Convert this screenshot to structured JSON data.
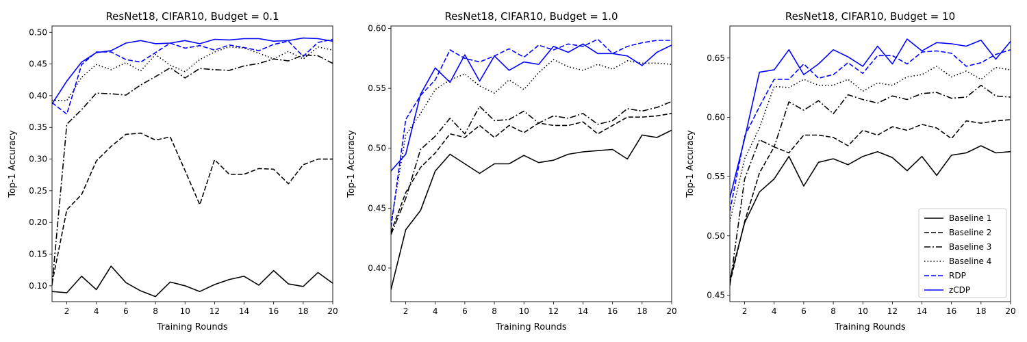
{
  "chart_data": [
    {
      "type": "line",
      "title": "ResNet18, CIFAR10, Budget = 0.1",
      "xlabel": "Training Rounds",
      "ylabel": "Top-1 Accuracy",
      "xlim": [
        1,
        20
      ],
      "ylim": [
        0.075,
        0.51
      ],
      "xticks": [
        2,
        4,
        6,
        8,
        10,
        12,
        14,
        16,
        18,
        20
      ],
      "yticks": [
        0.1,
        0.15,
        0.2,
        0.25,
        0.3,
        0.35,
        0.4,
        0.45,
        0.5
      ],
      "x": [
        1,
        2,
        3,
        4,
        5,
        6,
        7,
        8,
        9,
        10,
        11,
        12,
        13,
        14,
        15,
        16,
        17,
        18,
        19,
        20
      ],
      "series": [
        {
          "name": "Baseline 1",
          "color": "#000000",
          "style": "solid",
          "values": [
            0.091,
            0.089,
            0.115,
            0.094,
            0.131,
            0.105,
            0.092,
            0.083,
            0.106,
            0.1,
            0.091,
            0.102,
            0.11,
            0.115,
            0.101,
            0.124,
            0.103,
            0.099,
            0.121,
            0.104
          ]
        },
        {
          "name": "Baseline 2",
          "color": "#000000",
          "style": "dashed",
          "values": [
            0.104,
            0.22,
            0.244,
            0.297,
            0.32,
            0.339,
            0.341,
            0.33,
            0.335,
            0.282,
            0.228,
            0.299,
            0.276,
            0.276,
            0.285,
            0.284,
            0.261,
            0.291,
            0.3,
            0.3
          ]
        },
        {
          "name": "Baseline 3",
          "color": "#000000",
          "style": "dashdot",
          "values": [
            0.101,
            0.355,
            0.378,
            0.404,
            0.403,
            0.401,
            0.417,
            0.43,
            0.444,
            0.428,
            0.443,
            0.441,
            0.44,
            0.447,
            0.451,
            0.458,
            0.455,
            0.464,
            0.463,
            0.451
          ]
        },
        {
          "name": "Baseline 4",
          "color": "#000000",
          "style": "dotted",
          "values": [
            0.393,
            0.392,
            0.429,
            0.449,
            0.441,
            0.452,
            0.439,
            0.465,
            0.448,
            0.438,
            0.457,
            0.469,
            0.477,
            0.475,
            0.467,
            0.458,
            0.47,
            0.458,
            0.477,
            0.472
          ]
        },
        {
          "name": "RDP",
          "color": "#0000ff",
          "style": "dashed",
          "values": [
            0.389,
            0.371,
            0.449,
            0.469,
            0.469,
            0.457,
            0.453,
            0.468,
            0.483,
            0.475,
            0.479,
            0.472,
            0.48,
            0.476,
            0.471,
            0.481,
            0.486,
            0.462,
            0.484,
            0.489
          ]
        },
        {
          "name": "zCDP",
          "color": "#0000ff",
          "style": "solid",
          "values": [
            0.387,
            0.423,
            0.453,
            0.468,
            0.471,
            0.483,
            0.487,
            0.482,
            0.483,
            0.487,
            0.482,
            0.489,
            0.488,
            0.49,
            0.49,
            0.486,
            0.487,
            0.491,
            0.49,
            0.486
          ]
        }
      ]
    },
    {
      "type": "line",
      "title": "ResNet18, CIFAR10, Budget = 1.0",
      "xlabel": "Training Rounds",
      "ylabel": "Top-1 Accuracy",
      "xlim": [
        1,
        20
      ],
      "ylim": [
        0.372,
        0.602
      ],
      "xticks": [
        2,
        4,
        6,
        8,
        10,
        12,
        14,
        16,
        18,
        20
      ],
      "yticks": [
        0.4,
        0.45,
        0.5,
        0.55,
        0.6
      ],
      "x": [
        1,
        2,
        3,
        4,
        5,
        6,
        7,
        8,
        9,
        10,
        11,
        12,
        13,
        14,
        15,
        16,
        17,
        18,
        19,
        20
      ],
      "series": [
        {
          "name": "Baseline 1",
          "color": "#000000",
          "style": "solid",
          "values": [
            0.382,
            0.432,
            0.448,
            0.481,
            0.495,
            0.487,
            0.479,
            0.487,
            0.487,
            0.494,
            0.488,
            0.49,
            0.495,
            0.497,
            0.498,
            0.499,
            0.491,
            0.511,
            0.509,
            0.515
          ]
        },
        {
          "name": "Baseline 2",
          "color": "#000000",
          "style": "dashed",
          "values": [
            0.43,
            0.463,
            0.484,
            0.496,
            0.512,
            0.509,
            0.519,
            0.509,
            0.519,
            0.513,
            0.521,
            0.519,
            0.519,
            0.522,
            0.512,
            0.519,
            0.526,
            0.526,
            0.527,
            0.529
          ]
        },
        {
          "name": "Baseline 3",
          "color": "#000000",
          "style": "dashdot",
          "values": [
            0.428,
            0.458,
            0.499,
            0.51,
            0.525,
            0.512,
            0.535,
            0.523,
            0.524,
            0.531,
            0.521,
            0.527,
            0.525,
            0.529,
            0.52,
            0.523,
            0.533,
            0.531,
            0.534,
            0.539
          ]
        },
        {
          "name": "Baseline 4",
          "color": "#000000",
          "style": "dotted",
          "values": [
            0.437,
            0.511,
            0.529,
            0.549,
            0.557,
            0.562,
            0.552,
            0.546,
            0.557,
            0.549,
            0.563,
            0.574,
            0.568,
            0.565,
            0.57,
            0.566,
            0.573,
            0.571,
            0.571,
            0.57
          ]
        },
        {
          "name": "RDP",
          "color": "#0000ff",
          "style": "dashed",
          "values": [
            0.434,
            0.524,
            0.544,
            0.557,
            0.582,
            0.575,
            0.572,
            0.577,
            0.583,
            0.576,
            0.586,
            0.582,
            0.587,
            0.585,
            0.591,
            0.579,
            0.585,
            0.588,
            0.59,
            0.59
          ]
        },
        {
          "name": "zCDP",
          "color": "#0000ff",
          "style": "solid",
          "values": [
            0.481,
            0.495,
            0.545,
            0.567,
            0.555,
            0.578,
            0.556,
            0.577,
            0.565,
            0.572,
            0.57,
            0.585,
            0.58,
            0.587,
            0.579,
            0.579,
            0.577,
            0.569,
            0.58,
            0.586
          ]
        }
      ]
    },
    {
      "type": "line",
      "title": "ResNet18, CIFAR10, Budget = 10",
      "xlabel": "Training Rounds",
      "ylabel": "Top-1 Accuracy",
      "xlim": [
        1,
        20
      ],
      "ylim": [
        0.4445,
        0.677
      ],
      "xticks": [
        2,
        4,
        6,
        8,
        10,
        12,
        14,
        16,
        18,
        20
      ],
      "yticks": [
        0.45,
        0.5,
        0.55,
        0.6,
        0.65
      ],
      "x": [
        1,
        2,
        3,
        4,
        5,
        6,
        7,
        8,
        9,
        10,
        11,
        12,
        13,
        14,
        15,
        16,
        17,
        18,
        19,
        20
      ],
      "legend_position": "lower-right",
      "series": [
        {
          "name": "Baseline 1",
          "color": "#000000",
          "style": "solid",
          "values": [
            0.463,
            0.511,
            0.537,
            0.548,
            0.567,
            0.542,
            0.562,
            0.565,
            0.56,
            0.567,
            0.571,
            0.566,
            0.555,
            0.567,
            0.551,
            0.568,
            0.57,
            0.576,
            0.57,
            0.571
          ]
        },
        {
          "name": "Baseline 2",
          "color": "#000000",
          "style": "dashed",
          "values": [
            0.46,
            0.512,
            0.553,
            0.575,
            0.57,
            0.585,
            0.585,
            0.583,
            0.576,
            0.589,
            0.585,
            0.592,
            0.589,
            0.594,
            0.591,
            0.582,
            0.597,
            0.595,
            0.597,
            0.598
          ]
        },
        {
          "name": "Baseline 3",
          "color": "#000000",
          "style": "dashdot",
          "values": [
            0.458,
            0.548,
            0.581,
            0.575,
            0.613,
            0.606,
            0.614,
            0.603,
            0.619,
            0.615,
            0.612,
            0.618,
            0.615,
            0.62,
            0.621,
            0.616,
            0.617,
            0.627,
            0.618,
            0.617
          ]
        },
        {
          "name": "Baseline 4",
          "color": "#000000",
          "style": "dotted",
          "values": [
            0.512,
            0.565,
            0.591,
            0.626,
            0.625,
            0.632,
            0.627,
            0.627,
            0.632,
            0.622,
            0.629,
            0.627,
            0.634,
            0.636,
            0.643,
            0.634,
            0.639,
            0.632,
            0.642,
            0.64
          ]
        },
        {
          "name": "RDP",
          "color": "#0000ff",
          "style": "dashed",
          "values": [
            0.521,
            0.584,
            0.609,
            0.632,
            0.632,
            0.645,
            0.633,
            0.636,
            0.646,
            0.637,
            0.652,
            0.652,
            0.645,
            0.655,
            0.656,
            0.654,
            0.643,
            0.646,
            0.653,
            0.657
          ]
        },
        {
          "name": "zCDP",
          "color": "#0000ff",
          "style": "solid",
          "values": [
            0.532,
            0.582,
            0.638,
            0.64,
            0.657,
            0.636,
            0.645,
            0.657,
            0.651,
            0.643,
            0.66,
            0.645,
            0.666,
            0.656,
            0.663,
            0.662,
            0.66,
            0.665,
            0.649,
            0.664
          ]
        }
      ]
    }
  ]
}
